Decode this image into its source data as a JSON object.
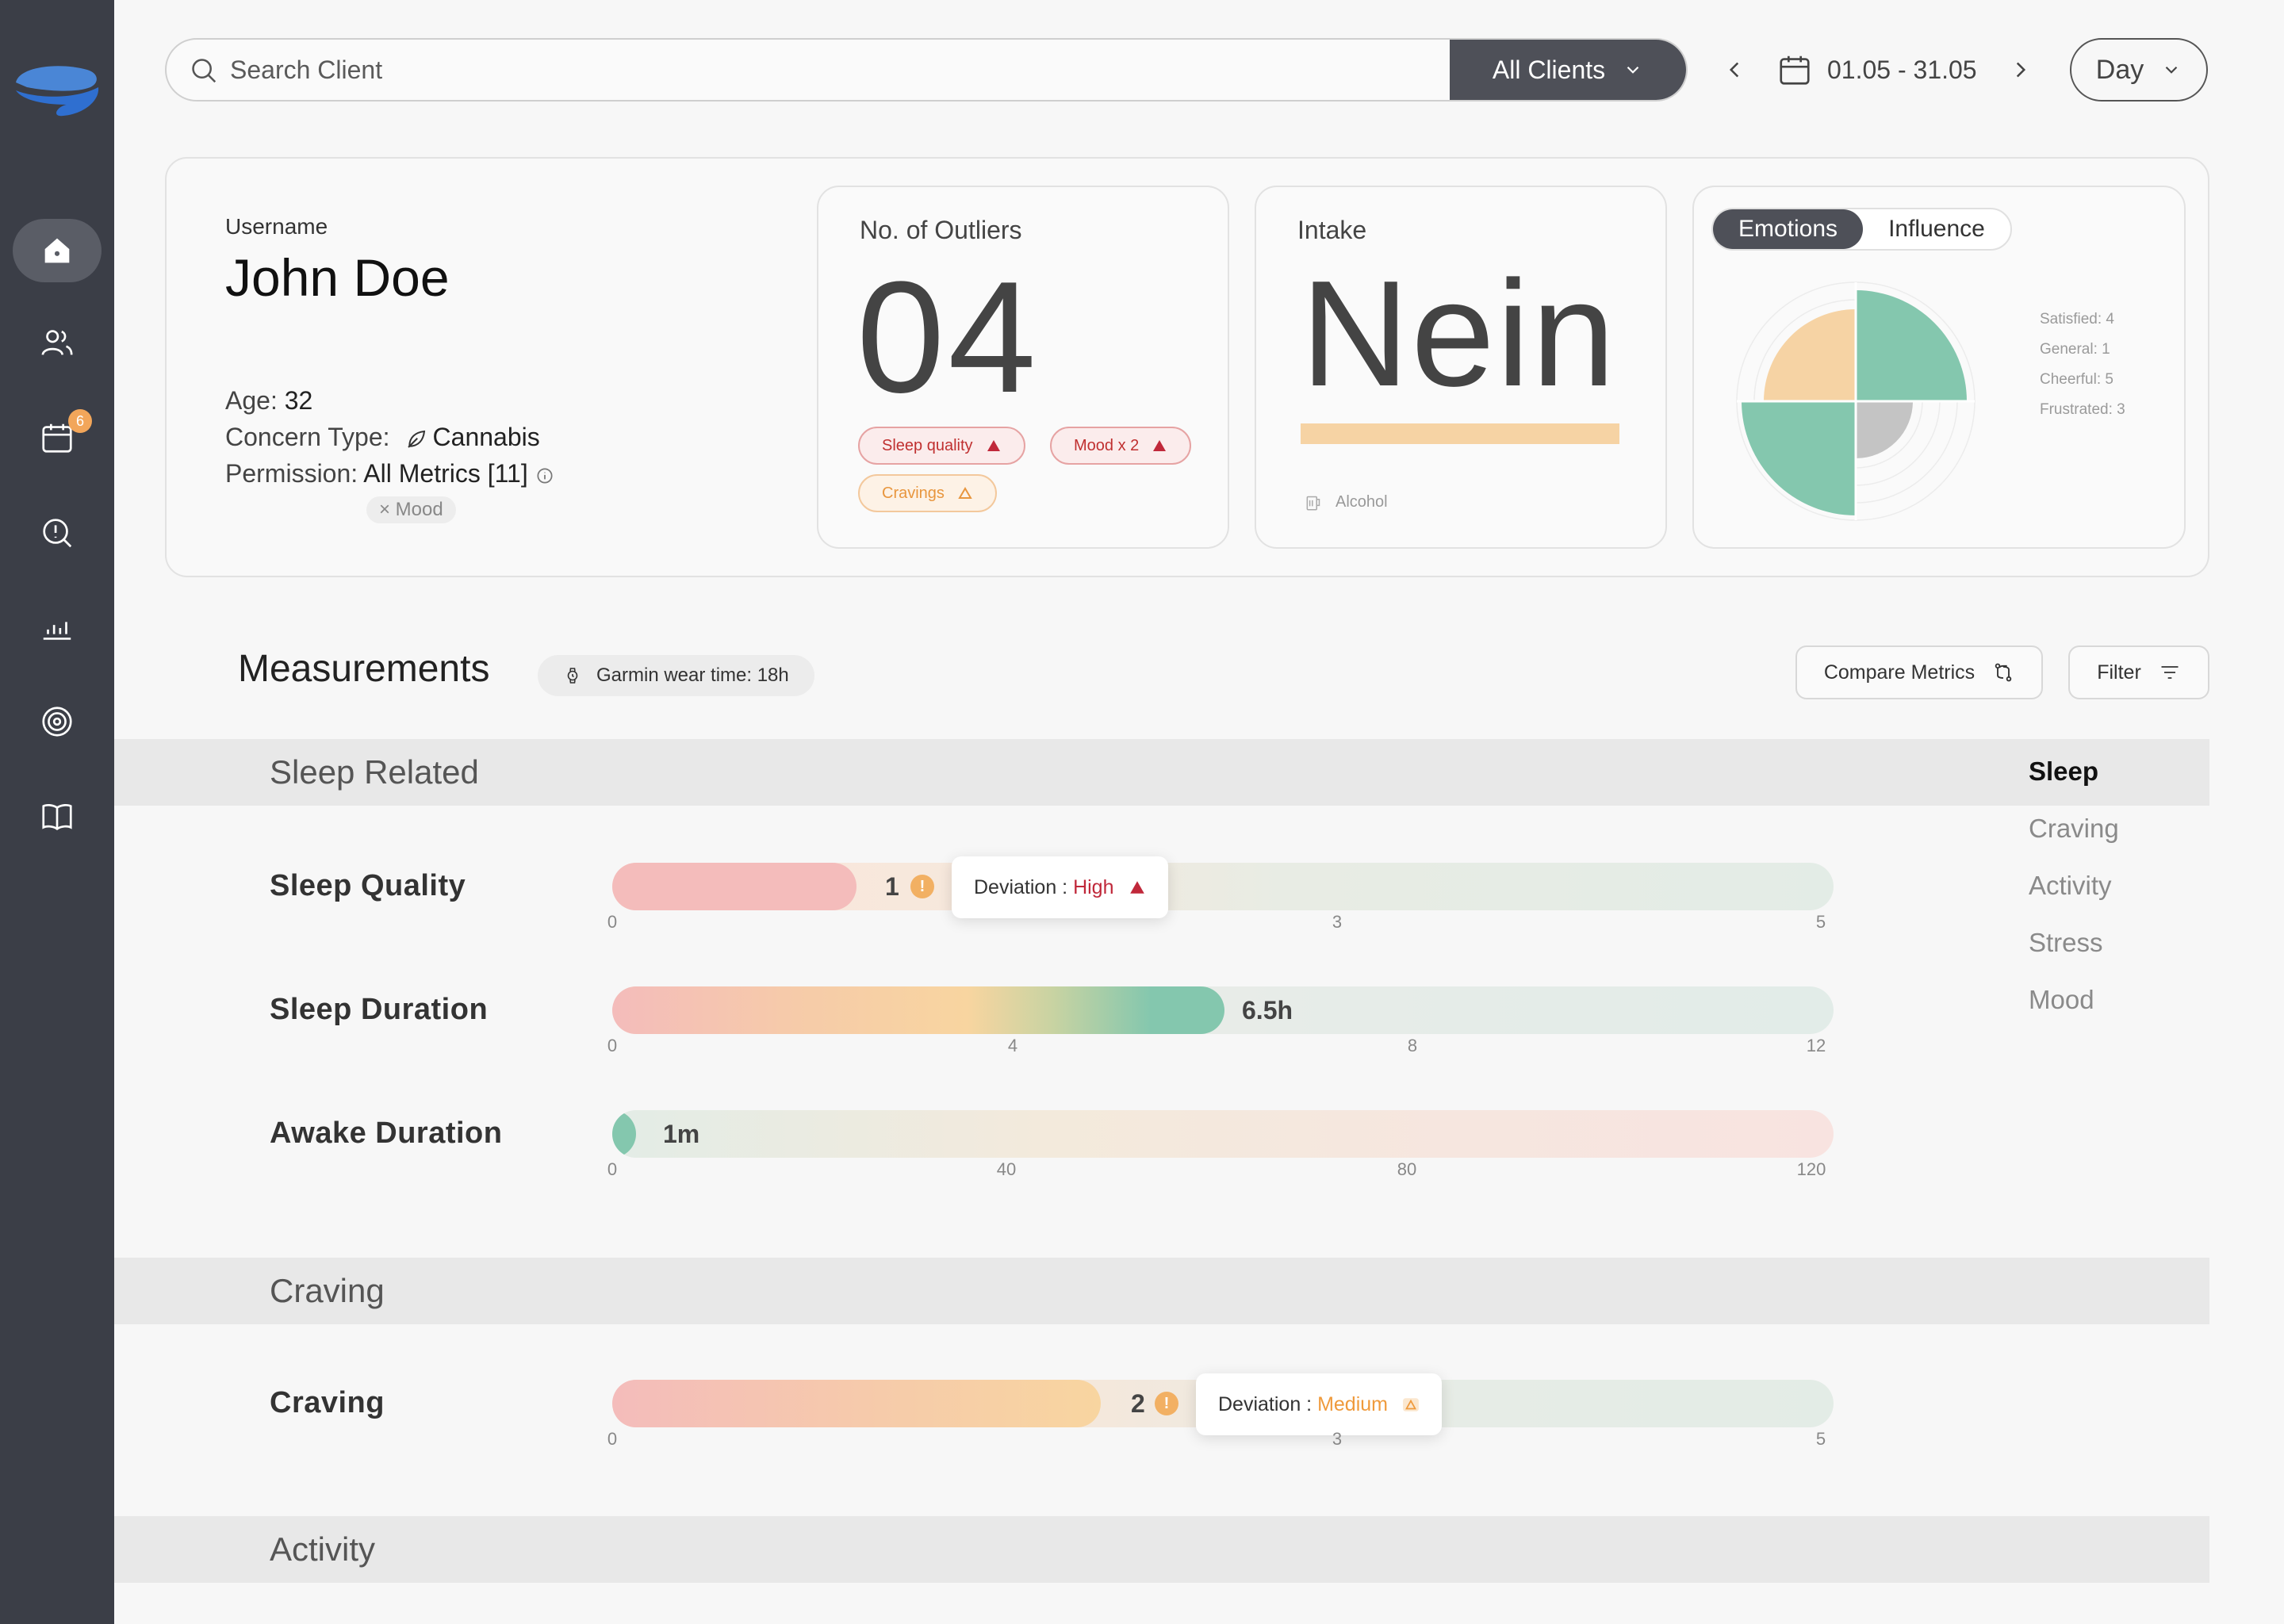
{
  "search": {
    "placeholder": "Search Client",
    "clients_filter": "All Clients"
  },
  "date": {
    "range": "01.05 - 31.05",
    "granularity": "Day"
  },
  "sidebar": {
    "calendar_badge": "6"
  },
  "profile": {
    "username_label": "Username",
    "name": "John Doe",
    "age_label": "Age:",
    "age": "32",
    "concern_label": "Concern Type:",
    "concern": "Cannabis",
    "permission_label": "Permission:",
    "permission": "All Metrics [11]",
    "excluded_chip": "× Mood"
  },
  "outliers": {
    "title": "No. of Outliers",
    "count": "04",
    "tags": [
      "Sleep quality",
      "Mood x 2",
      "Cravings"
    ]
  },
  "intake": {
    "title": "Intake",
    "value": "Nein",
    "substance": "Alcohol"
  },
  "emotions": {
    "tabs": [
      "Emotions",
      "Influence"
    ],
    "legend": [
      "Satisfied: 4",
      "General: 1",
      "Cheerful: 5",
      "Frustrated: 3"
    ]
  },
  "measurements": {
    "title": "Measurements",
    "garmin": "Garmin wear time: 18h",
    "compare": "Compare Metrics",
    "filter": "Filter"
  },
  "sections": {
    "sleep_related": "Sleep Related",
    "craving": "Craving",
    "activity": "Activity"
  },
  "right_nav": [
    "Sleep",
    "Craving",
    "Activity",
    "Stress",
    "Mood"
  ],
  "metrics": {
    "sleep_quality": {
      "label": "Sleep Quality",
      "value": "1",
      "max": 5,
      "ticks": [
        "0",
        "3",
        "5"
      ],
      "deviation_label": "Deviation :",
      "deviation": "High"
    },
    "sleep_duration": {
      "label": "Sleep Duration",
      "value": "6.5h",
      "value_num": 6.5,
      "max": 12,
      "ticks": [
        "0",
        "4",
        "8",
        "12"
      ]
    },
    "awake_duration": {
      "label": "Awake Duration",
      "value": "1m",
      "value_num": 1,
      "max": 120,
      "ticks": [
        "0",
        "40",
        "80",
        "120"
      ]
    },
    "craving": {
      "label": "Craving",
      "value": "2",
      "max": 5,
      "ticks": [
        "0",
        "3",
        "5"
      ],
      "deviation_label": "Deviation :",
      "deviation": "Medium"
    }
  },
  "colors": {
    "sidebar": "#3b3e47",
    "teal": "#84c7ae",
    "peach": "#f6d3a4",
    "pink": "#f3b6b6",
    "alert_red": "#c0283a",
    "alert_orange": "#ef9a3c"
  }
}
